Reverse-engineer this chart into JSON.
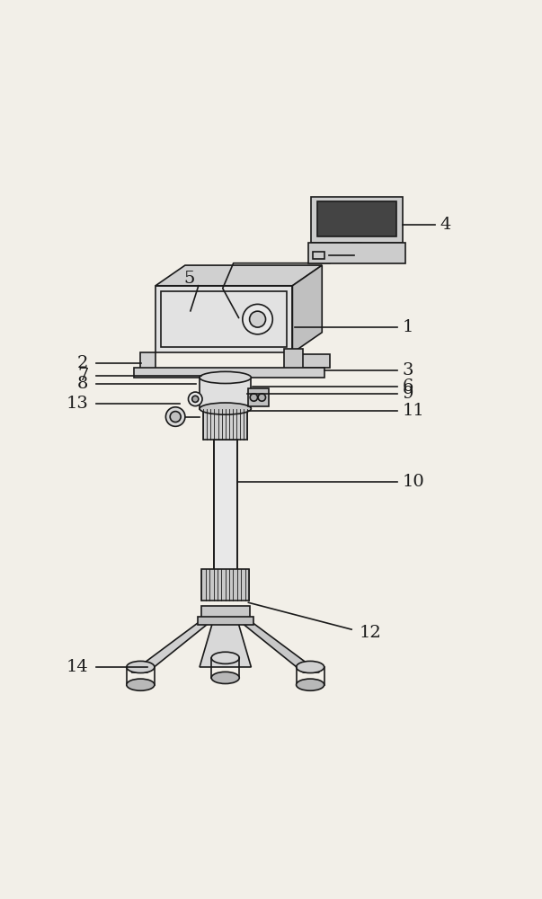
{
  "bg_color": "#f2efe8",
  "line_color": "#1a1a1a",
  "lw": 1.2
}
